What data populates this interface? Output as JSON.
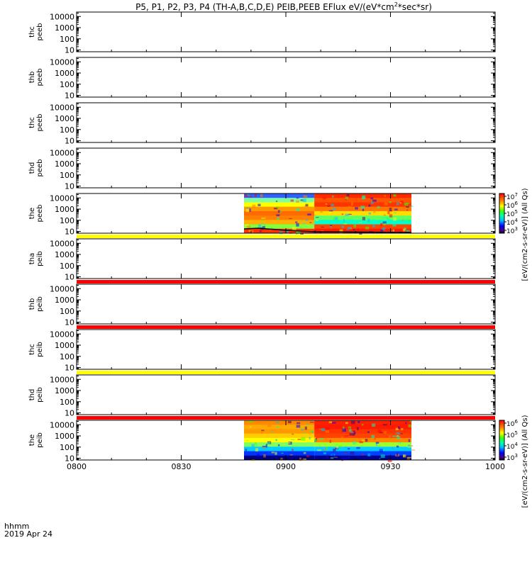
{
  "chart_data": {
    "type": "heatmap",
    "title": "P5, P1, P2, P3, P4 (TH-A,B,C,D,E) PEIB,PEEB EFlux eV/(eV*cm²*sec*sr)",
    "title_parts": {
      "main": "P5, P1, P2, P3, P4 (TH-A,B,C,D,E) PEIB,PEEB EFlux eV/(eV*cm",
      "sup": "2",
      "tail": "*sec*sr)"
    },
    "x_tick_labels": [
      "0800",
      "0830",
      "0900",
      "0930",
      "1000"
    ],
    "x_tick_values_min": [
      0,
      30,
      60,
      90,
      120
    ],
    "xlim_min": [
      0,
      120
    ],
    "x_footer": {
      "line1": "hhmm",
      "line2": "2019 Apr 24"
    },
    "y_scale": "log",
    "ylim": [
      7,
      25000
    ],
    "y_tick_labels": [
      "10000",
      "1000",
      "100",
      "10"
    ],
    "y_tick_values": [
      10000,
      1000,
      100,
      10
    ],
    "data_window_min": [
      48,
      96
    ],
    "panels": [
      {
        "probe": "thc",
        "product": "peeb",
        "has_data": false,
        "flag_bar": "none"
      },
      {
        "probe": "thb",
        "product": "peeb",
        "has_data": false,
        "flag_bar": "none"
      },
      {
        "probe": "thc",
        "product": "peeb",
        "has_data": false,
        "flag_bar": "none"
      },
      {
        "probe": "thd",
        "product": "peeb",
        "has_data": false,
        "flag_bar": "none"
      },
      {
        "probe": "the",
        "product": "peeb",
        "has_data": true,
        "flag_bar": "#ffff00"
      },
      {
        "probe": "tha",
        "product": "peib",
        "has_data": false,
        "flag_bar": "#ff0000"
      },
      {
        "probe": "thb",
        "product": "peib",
        "has_data": false,
        "flag_bar": "#ff0000"
      },
      {
        "probe": "thc",
        "product": "peib",
        "has_data": false,
        "flag_bar": "#ffff00"
      },
      {
        "probe": "thd",
        "product": "peib",
        "has_data": false,
        "flag_bar": "#ff0000"
      },
      {
        "probe": "the",
        "product": "peib",
        "has_data": true,
        "flag_bar": "none"
      }
    ],
    "colorbars": [
      {
        "label": "[eV/(cm2-s-sr-eV)] (All Qs)",
        "ticks": [
          {
            "base": "10",
            "exp": "7"
          },
          {
            "base": "10",
            "exp": "6"
          },
          {
            "base": "10",
            "exp": "5"
          },
          {
            "base": "10",
            "exp": "4"
          },
          {
            "base": "10",
            "exp": "3"
          }
        ]
      },
      {
        "label": "[eV/(cm2-s-sr-eV)] (All Qs)",
        "ticks": [
          {
            "base": "10",
            "exp": "6"
          },
          {
            "base": "10",
            "exp": "5"
          },
          {
            "base": "10",
            "exp": "4"
          },
          {
            "base": "10",
            "exp": "3"
          }
        ]
      }
    ]
  }
}
